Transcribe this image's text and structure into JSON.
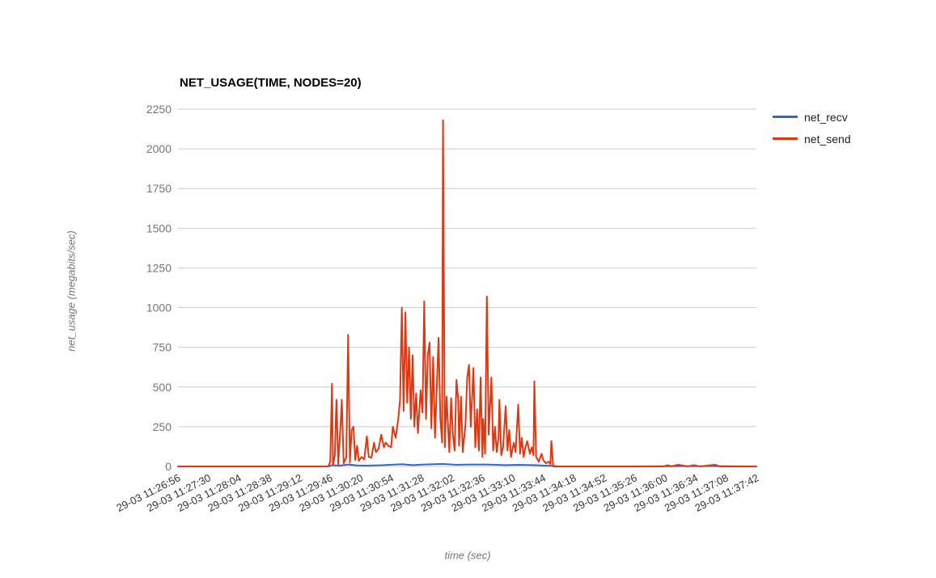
{
  "page": {
    "background_color": "#ffffff"
  },
  "chart_data": {
    "type": "line",
    "title": "NET_USAGE(TIME, NODES=20)",
    "xlabel": "time (sec)",
    "ylabel": "net_usage (megabits/sec)",
    "legend_position": "right",
    "grid": "horizontal",
    "grid_color": "#cccccc",
    "y_tick_color": "#757575",
    "x_tick_color": "#333333",
    "ylim": [
      0,
      2250
    ],
    "y_ticks": [
      0,
      250,
      500,
      750,
      1000,
      1250,
      1500,
      1750,
      2000,
      2250
    ],
    "xlim_seconds": [
      0,
      646
    ],
    "x_tick_seconds": [
      0,
      34,
      68,
      102,
      136,
      170,
      204,
      238,
      272,
      306,
      340,
      374,
      408,
      442,
      476,
      510,
      544,
      578,
      612,
      646
    ],
    "x_tick_labels": [
      "29-03 11:26:56",
      "29-03 11:27:30",
      "29-03 11:28:04",
      "29-03 11:28:38",
      "29-03 11:29:12",
      "29-03 11:29:46",
      "29-03 11:30:20",
      "29-03 11:30:54",
      "29-03 11:31:28",
      "29-03 11:32:02",
      "29-03 11:32:36",
      "29-03 11:33:10",
      "29-03 11:33:44",
      "29-03 11:34:18",
      "29-03 11:34:52",
      "29-03 11:35:26",
      "29-03 11:36:00",
      "29-03 11:36:34",
      "29-03 11:37:08",
      "29-03 11:37:42"
    ],
    "series": [
      {
        "name": "net_recv",
        "color": "#3366cc",
        "points": [
          [
            0,
            0
          ],
          [
            136,
            0
          ],
          [
            168,
            0
          ],
          [
            172,
            8
          ],
          [
            180,
            5
          ],
          [
            190,
            12
          ],
          [
            200,
            6
          ],
          [
            211,
            5
          ],
          [
            230,
            8
          ],
          [
            250,
            14
          ],
          [
            262,
            8
          ],
          [
            275,
            12
          ],
          [
            296,
            16
          ],
          [
            311,
            10
          ],
          [
            325,
            12
          ],
          [
            345,
            12
          ],
          [
            366,
            8
          ],
          [
            380,
            10
          ],
          [
            398,
            8
          ],
          [
            410,
            5
          ],
          [
            419,
            3
          ],
          [
            425,
            0
          ],
          [
            500,
            0
          ],
          [
            558,
            2
          ],
          [
            600,
            2
          ],
          [
            646,
            0
          ]
        ]
      },
      {
        "name": "net_send",
        "color": "#dc3912",
        "points": [
          [
            0,
            0
          ],
          [
            45,
            0
          ],
          [
            90,
            0
          ],
          [
            136,
            0
          ],
          [
            168,
            0
          ],
          [
            170,
            30
          ],
          [
            172,
            520
          ],
          [
            173,
            10
          ],
          [
            175,
            60
          ],
          [
            177,
            420
          ],
          [
            179,
            15
          ],
          [
            182,
            300
          ],
          [
            183,
            420
          ],
          [
            185,
            20
          ],
          [
            188,
            60
          ],
          [
            190,
            830
          ],
          [
            192,
            25
          ],
          [
            194,
            230
          ],
          [
            196,
            250
          ],
          [
            198,
            40
          ],
          [
            200,
            130
          ],
          [
            202,
            35
          ],
          [
            205,
            60
          ],
          [
            208,
            45
          ],
          [
            211,
            190
          ],
          [
            213,
            60
          ],
          [
            216,
            55
          ],
          [
            219,
            150
          ],
          [
            221,
            90
          ],
          [
            224,
            110
          ],
          [
            227,
            200
          ],
          [
            230,
            120
          ],
          [
            232,
            150
          ],
          [
            235,
            130
          ],
          [
            238,
            120
          ],
          [
            240,
            250
          ],
          [
            243,
            180
          ],
          [
            246,
            300
          ],
          [
            248,
            420
          ],
          [
            250,
            1000
          ],
          [
            252,
            350
          ],
          [
            254,
            970
          ],
          [
            256,
            400
          ],
          [
            258,
            750
          ],
          [
            260,
            300
          ],
          [
            262,
            700
          ],
          [
            264,
            250
          ],
          [
            266,
            460
          ],
          [
            268,
            210
          ],
          [
            271,
            480
          ],
          [
            273,
            340
          ],
          [
            275,
            1040
          ],
          [
            277,
            300
          ],
          [
            279,
            700
          ],
          [
            281,
            780
          ],
          [
            283,
            240
          ],
          [
            285,
            690
          ],
          [
            287,
            180
          ],
          [
            289,
            500
          ],
          [
            291,
            810
          ],
          [
            293,
            300
          ],
          [
            295,
            150
          ],
          [
            296,
            2180
          ],
          [
            298,
            120
          ],
          [
            300,
            440
          ],
          [
            303,
            90
          ],
          [
            305,
            430
          ],
          [
            307,
            200
          ],
          [
            309,
            100
          ],
          [
            311,
            545
          ],
          [
            313,
            420
          ],
          [
            314,
            130
          ],
          [
            316,
            440
          ],
          [
            318,
            90
          ],
          [
            321,
            260
          ],
          [
            323,
            560
          ],
          [
            325,
            640
          ],
          [
            327,
            250
          ],
          [
            330,
            620
          ],
          [
            332,
            120
          ],
          [
            334,
            360
          ],
          [
            336,
            100
          ],
          [
            338,
            560
          ],
          [
            340,
            60
          ],
          [
            341,
            300
          ],
          [
            343,
            80
          ],
          [
            345,
            1070
          ],
          [
            347,
            200
          ],
          [
            350,
            560
          ],
          [
            352,
            100
          ],
          [
            354,
            250
          ],
          [
            356,
            90
          ],
          [
            358,
            180
          ],
          [
            359,
            420
          ],
          [
            361,
            70
          ],
          [
            363,
            120
          ],
          [
            366,
            380
          ],
          [
            368,
            100
          ],
          [
            370,
            230
          ],
          [
            372,
            60
          ],
          [
            375,
            150
          ],
          [
            377,
            90
          ],
          [
            380,
            390
          ],
          [
            382,
            80
          ],
          [
            384,
            180
          ],
          [
            386,
            60
          ],
          [
            388,
            120
          ],
          [
            390,
            160
          ],
          [
            393,
            80
          ],
          [
            395,
            120
          ],
          [
            397,
            70
          ],
          [
            398,
            535
          ],
          [
            400,
            60
          ],
          [
            403,
            30
          ],
          [
            406,
            80
          ],
          [
            408,
            40
          ],
          [
            411,
            20
          ],
          [
            414,
            30
          ],
          [
            416,
            15
          ],
          [
            417,
            160
          ],
          [
            419,
            0
          ],
          [
            434,
            0
          ],
          [
            479,
            0
          ],
          [
            524,
            0
          ],
          [
            542,
            0
          ],
          [
            547,
            8
          ],
          [
            551,
            0
          ],
          [
            558,
            10
          ],
          [
            565,
            5
          ],
          [
            569,
            0
          ],
          [
            576,
            8
          ],
          [
            583,
            0
          ],
          [
            592,
            6
          ],
          [
            600,
            10
          ],
          [
            605,
            0
          ],
          [
            646,
            0
          ]
        ]
      }
    ]
  }
}
